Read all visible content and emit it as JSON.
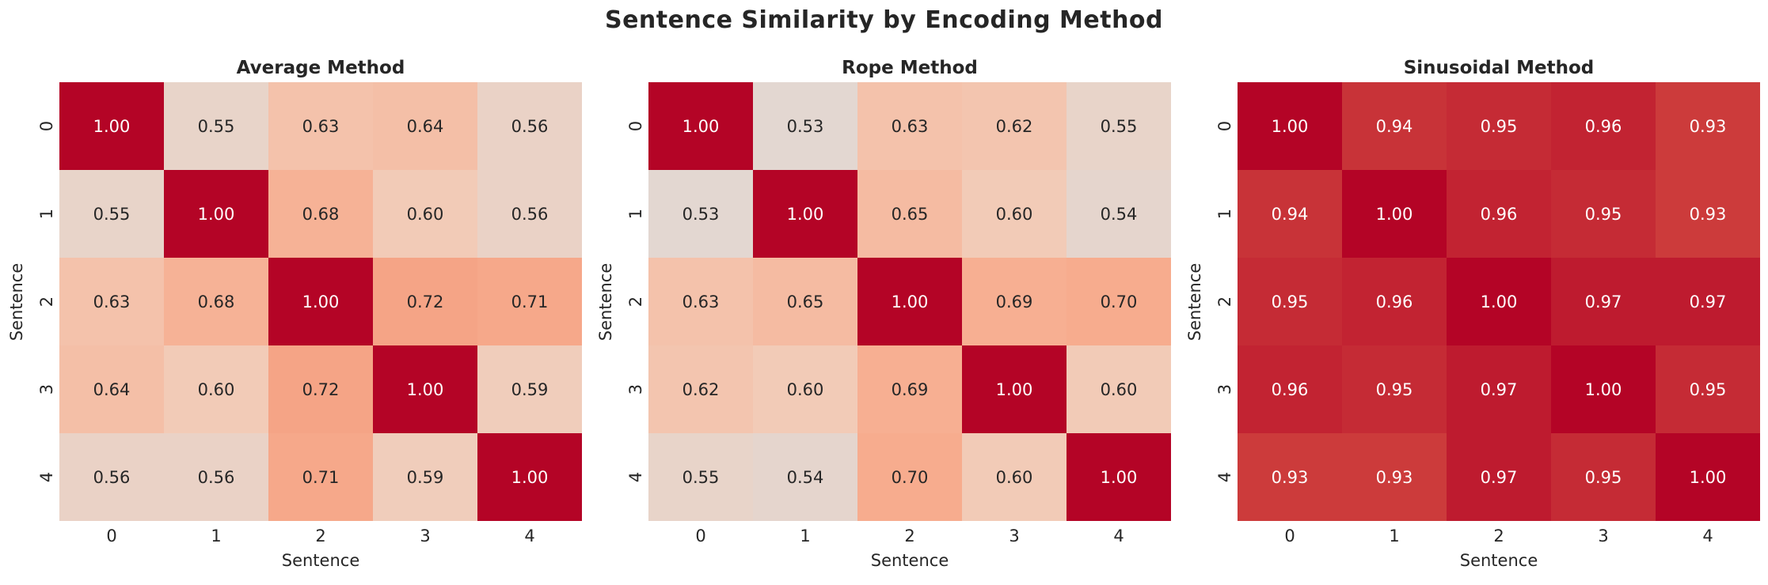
{
  "figure": {
    "title": "Sentence Similarity by Encoding Method",
    "background": "#ffffff",
    "text_color": "#262626",
    "colormap": {
      "name": "coolwarm",
      "vmin": 0,
      "vmax": 1,
      "stops": [
        {
          "t": 0.0,
          "color": "#3b4cc0"
        },
        {
          "t": 0.1,
          "color": "#5977e3"
        },
        {
          "t": 0.2,
          "color": "#7b9ff9"
        },
        {
          "t": 0.3,
          "color": "#9ebeff"
        },
        {
          "t": 0.4,
          "color": "#c0d4f5"
        },
        {
          "t": 0.5,
          "color": "#dddcdc"
        },
        {
          "t": 0.6,
          "color": "#f2cbb7"
        },
        {
          "t": 0.7,
          "color": "#f7ac8e"
        },
        {
          "t": 0.8,
          "color": "#ee8468"
        },
        {
          "t": 0.9,
          "color": "#d65244"
        },
        {
          "t": 1.0,
          "color": "#b40426"
        }
      ],
      "annot_light_text": "#ffffff",
      "annot_dark_text": "#262626"
    }
  },
  "chart_data": [
    {
      "type": "heatmap",
      "title": "Average Method",
      "xlabel": "Sentence",
      "ylabel": "Sentence",
      "x_ticks": [
        "0",
        "1",
        "2",
        "3",
        "4"
      ],
      "y_ticks": [
        "0",
        "1",
        "2",
        "3",
        "4"
      ],
      "values": [
        [
          1.0,
          0.55,
          0.63,
          0.64,
          0.56
        ],
        [
          0.55,
          1.0,
          0.68,
          0.6,
          0.56
        ],
        [
          0.63,
          0.68,
          1.0,
          0.72,
          0.71
        ],
        [
          0.64,
          0.6,
          0.72,
          1.0,
          0.59
        ],
        [
          0.56,
          0.56,
          0.71,
          0.59,
          1.0
        ]
      ]
    },
    {
      "type": "heatmap",
      "title": "Rope Method",
      "xlabel": "Sentence",
      "ylabel": "Sentence",
      "x_ticks": [
        "0",
        "1",
        "2",
        "3",
        "4"
      ],
      "y_ticks": [
        "0",
        "1",
        "2",
        "3",
        "4"
      ],
      "values": [
        [
          1.0,
          0.53,
          0.63,
          0.62,
          0.55
        ],
        [
          0.53,
          1.0,
          0.65,
          0.6,
          0.54
        ],
        [
          0.63,
          0.65,
          1.0,
          0.69,
          0.7
        ],
        [
          0.62,
          0.6,
          0.69,
          1.0,
          0.6
        ],
        [
          0.55,
          0.54,
          0.7,
          0.6,
          1.0
        ]
      ]
    },
    {
      "type": "heatmap",
      "title": "Sinusoidal Method",
      "xlabel": "Sentence",
      "ylabel": "Sentence",
      "x_ticks": [
        "0",
        "1",
        "2",
        "3",
        "4"
      ],
      "y_ticks": [
        "0",
        "1",
        "2",
        "3",
        "4"
      ],
      "values": [
        [
          1.0,
          0.94,
          0.95,
          0.96,
          0.93
        ],
        [
          0.94,
          1.0,
          0.96,
          0.95,
          0.93
        ],
        [
          0.95,
          0.96,
          1.0,
          0.97,
          0.97
        ],
        [
          0.96,
          0.95,
          0.97,
          1.0,
          0.95
        ],
        [
          0.93,
          0.93,
          0.97,
          0.95,
          1.0
        ]
      ]
    }
  ]
}
